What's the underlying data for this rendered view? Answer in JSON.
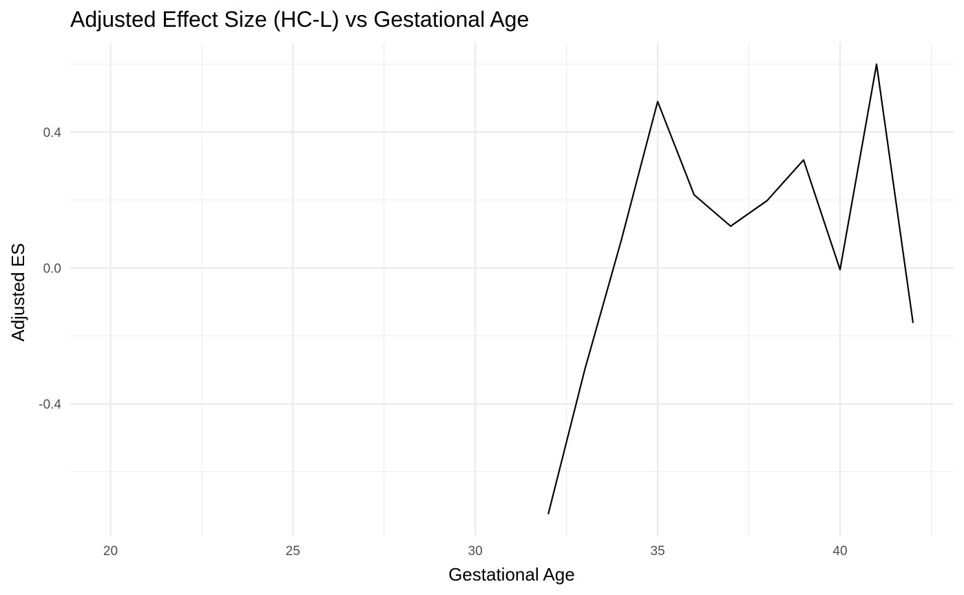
{
  "chart_data": {
    "type": "line",
    "title": "Adjusted Effect Size (HC-L) vs Gestational Age",
    "xlabel": "Gestational Age",
    "ylabel": "Adjusted ES",
    "xlim": [
      19,
      42.5
    ],
    "ylim": [
      -0.79,
      0.61
    ],
    "x_ticks": [
      20,
      25,
      30,
      35,
      40
    ],
    "x_tick_labels": [
      "20",
      "25",
      "30",
      "35",
      "40"
    ],
    "x_minor_ticks": [
      22.5,
      27.5,
      32.5,
      37.5,
      42.5
    ],
    "y_ticks": [
      -0.4,
      0.0,
      0.4
    ],
    "y_tick_labels": [
      "-0.4",
      "0.0",
      "0.4"
    ],
    "y_minor_ticks": [
      -0.6,
      -0.2,
      0.2,
      0.6
    ],
    "grid": true,
    "legend": "none",
    "line_color": "#000000",
    "series": [
      {
        "x": [
          32,
          33,
          34,
          35,
          36,
          37,
          38,
          39,
          40,
          41,
          42
        ],
        "y": [
          -0.725,
          -0.3,
          0.08,
          0.49,
          0.215,
          0.123,
          0.198,
          0.318,
          -0.005,
          0.6,
          -0.162
        ]
      }
    ]
  }
}
